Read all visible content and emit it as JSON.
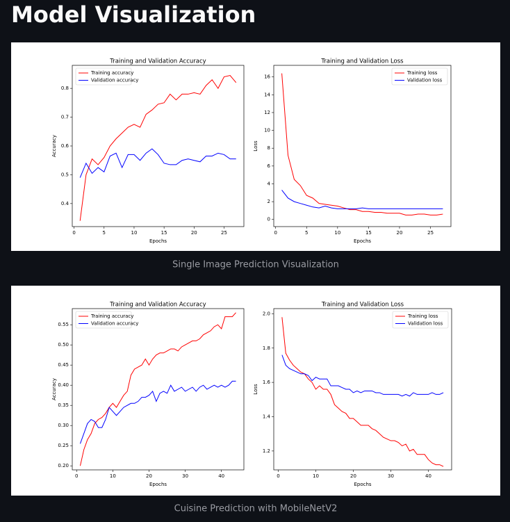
{
  "title": "Model Visualization",
  "captions": [
    "Single Image Prediction Visualization",
    "Cuisine Prediction with MobileNetV2"
  ],
  "chart_data": [
    {
      "type": "line",
      "title": "Training and Validation Accuracy",
      "x_label": "Epochs",
      "y_label": "Accuracy",
      "legend": "upper left",
      "x": [
        1,
        2,
        3,
        4,
        5,
        6,
        7,
        8,
        9,
        10,
        11,
        12,
        13,
        14,
        15,
        16,
        17,
        18,
        19,
        20,
        21,
        22,
        23,
        24,
        25,
        26,
        27
      ],
      "series": [
        {
          "name": "Training accuracy",
          "color": "#ff0000",
          "values": [
            0.34,
            0.5,
            0.555,
            0.535,
            0.56,
            0.6,
            0.625,
            0.645,
            0.665,
            0.675,
            0.665,
            0.71,
            0.725,
            0.745,
            0.75,
            0.78,
            0.76,
            0.78,
            0.78,
            0.785,
            0.78,
            0.81,
            0.83,
            0.8,
            0.84,
            0.845,
            0.82
          ]
        },
        {
          "name": "Validation accuracy",
          "color": "#0000ff",
          "values": [
            0.49,
            0.54,
            0.505,
            0.525,
            0.51,
            0.565,
            0.575,
            0.525,
            0.57,
            0.57,
            0.55,
            0.575,
            0.59,
            0.57,
            0.54,
            0.535,
            0.535,
            0.55,
            0.555,
            0.55,
            0.545,
            0.565,
            0.565,
            0.575,
            0.57,
            0.555,
            0.555
          ]
        }
      ],
      "xlim": [
        -0.3,
        28.3
      ],
      "ylim": [
        0.32,
        0.88
      ],
      "xticks": [
        0,
        5,
        10,
        15,
        20,
        25
      ],
      "yticks": [
        0.4,
        0.5,
        0.6,
        0.7,
        0.8
      ]
    },
    {
      "type": "line",
      "title": "Training and Validation Loss",
      "x_label": "Epochs",
      "y_label": "Loss",
      "legend": "upper right",
      "x": [
        1,
        2,
        3,
        4,
        5,
        6,
        7,
        8,
        9,
        10,
        11,
        12,
        13,
        14,
        15,
        16,
        17,
        18,
        19,
        20,
        21,
        22,
        23,
        24,
        25,
        26,
        27
      ],
      "series": [
        {
          "name": "Training loss",
          "color": "#ff0000",
          "values": [
            16.4,
            7.2,
            4.5,
            3.8,
            2.7,
            2.4,
            1.8,
            1.7,
            1.6,
            1.5,
            1.3,
            1.1,
            1.1,
            0.9,
            0.9,
            0.8,
            0.8,
            0.7,
            0.7,
            0.7,
            0.5,
            0.5,
            0.6,
            0.6,
            0.5,
            0.5,
            0.6
          ]
        },
        {
          "name": "Validation loss",
          "color": "#0000ff",
          "values": [
            3.3,
            2.4,
            2.0,
            1.8,
            1.6,
            1.4,
            1.3,
            1.5,
            1.3,
            1.2,
            1.2,
            1.2,
            1.2,
            1.3,
            1.2,
            1.2,
            1.2,
            1.2,
            1.2,
            1.2,
            1.2,
            1.2,
            1.2,
            1.2,
            1.2,
            1.2,
            1.2
          ]
        }
      ],
      "xlim": [
        -0.3,
        28.3
      ],
      "ylim": [
        -0.8,
        17.3
      ],
      "xticks": [
        0,
        5,
        10,
        15,
        20,
        25
      ],
      "yticks": [
        0,
        2,
        4,
        6,
        8,
        10,
        12,
        14,
        16
      ]
    },
    {
      "type": "line",
      "title": "Training and Validation Accuracy",
      "x_label": "Epochs",
      "y_label": "Accuracy",
      "legend": "upper left",
      "x": [
        1,
        2,
        3,
        4,
        5,
        6,
        7,
        8,
        9,
        10,
        11,
        12,
        13,
        14,
        15,
        16,
        17,
        18,
        19,
        20,
        21,
        22,
        23,
        24,
        25,
        26,
        27,
        28,
        29,
        30,
        31,
        32,
        33,
        34,
        35,
        36,
        37,
        38,
        39,
        40,
        41,
        42,
        43,
        44
      ],
      "series": [
        {
          "name": "Training accuracy",
          "color": "#ff0000",
          "values": [
            0.2,
            0.24,
            0.265,
            0.28,
            0.305,
            0.315,
            0.32,
            0.33,
            0.345,
            0.355,
            0.345,
            0.36,
            0.375,
            0.385,
            0.425,
            0.44,
            0.445,
            0.45,
            0.465,
            0.45,
            0.465,
            0.475,
            0.48,
            0.48,
            0.485,
            0.49,
            0.49,
            0.485,
            0.495,
            0.5,
            0.505,
            0.51,
            0.51,
            0.515,
            0.525,
            0.53,
            0.535,
            0.545,
            0.55,
            0.54,
            0.57,
            0.57,
            0.57,
            0.58
          ]
        },
        {
          "name": "Validation accuracy",
          "color": "#0000ff",
          "values": [
            0.255,
            0.28,
            0.305,
            0.315,
            0.31,
            0.295,
            0.295,
            0.315,
            0.345,
            0.335,
            0.325,
            0.335,
            0.345,
            0.35,
            0.355,
            0.355,
            0.36,
            0.37,
            0.37,
            0.375,
            0.385,
            0.36,
            0.38,
            0.385,
            0.38,
            0.4,
            0.385,
            0.39,
            0.395,
            0.385,
            0.39,
            0.395,
            0.385,
            0.395,
            0.4,
            0.39,
            0.395,
            0.4,
            0.395,
            0.4,
            0.395,
            0.4,
            0.41,
            0.41
          ]
        }
      ],
      "xlim": [
        -1.2,
        46.2
      ],
      "ylim": [
        0.19,
        0.59
      ],
      "xticks": [
        0,
        10,
        20,
        30,
        40
      ],
      "yticks": [
        {
          "value": 0.2,
          "label": "0.20"
        },
        0.25,
        {
          "value": 0.3,
          "label": "0.30"
        },
        0.35,
        {
          "value": 0.4,
          "label": "0.40"
        },
        0.45,
        {
          "value": 0.5,
          "label": "0.50"
        },
        0.55
      ]
    },
    {
      "type": "line",
      "title": "Training and Validation Loss",
      "x_label": "Epochs",
      "y_label": "Loss",
      "legend": "upper right",
      "x": [
        1,
        2,
        3,
        4,
        5,
        6,
        7,
        8,
        9,
        10,
        11,
        12,
        13,
        14,
        15,
        16,
        17,
        18,
        19,
        20,
        21,
        22,
        23,
        24,
        25,
        26,
        27,
        28,
        29,
        30,
        31,
        32,
        33,
        34,
        35,
        36,
        37,
        38,
        39,
        40,
        41,
        42,
        43,
        44
      ],
      "series": [
        {
          "name": "Training loss",
          "color": "#ff0000",
          "values": [
            1.98,
            1.77,
            1.73,
            1.7,
            1.68,
            1.66,
            1.65,
            1.62,
            1.6,
            1.56,
            1.58,
            1.56,
            1.56,
            1.53,
            1.47,
            1.45,
            1.43,
            1.42,
            1.39,
            1.39,
            1.37,
            1.35,
            1.35,
            1.35,
            1.33,
            1.32,
            1.3,
            1.28,
            1.27,
            1.26,
            1.26,
            1.25,
            1.23,
            1.24,
            1.2,
            1.21,
            1.18,
            1.18,
            1.18,
            1.15,
            1.13,
            1.12,
            1.12,
            1.11
          ]
        },
        {
          "name": "Validation loss",
          "color": "#0000ff",
          "values": [
            1.76,
            1.7,
            1.68,
            1.67,
            1.66,
            1.65,
            1.65,
            1.64,
            1.61,
            1.63,
            1.62,
            1.62,
            1.62,
            1.58,
            1.58,
            1.58,
            1.57,
            1.56,
            1.56,
            1.54,
            1.55,
            1.54,
            1.55,
            1.55,
            1.55,
            1.54,
            1.54,
            1.53,
            1.53,
            1.53,
            1.53,
            1.53,
            1.52,
            1.53,
            1.52,
            1.54,
            1.53,
            1.53,
            1.53,
            1.53,
            1.54,
            1.53,
            1.53,
            1.54
          ]
        }
      ],
      "xlim": [
        -1.2,
        46.2
      ],
      "ylim": [
        1.09,
        2.03
      ],
      "xticks": [
        0,
        10,
        20,
        30,
        40
      ],
      "yticks": [
        1.2,
        1.4,
        1.6,
        1.8,
        {
          "value": 2.0,
          "label": "2.0"
        }
      ]
    }
  ]
}
